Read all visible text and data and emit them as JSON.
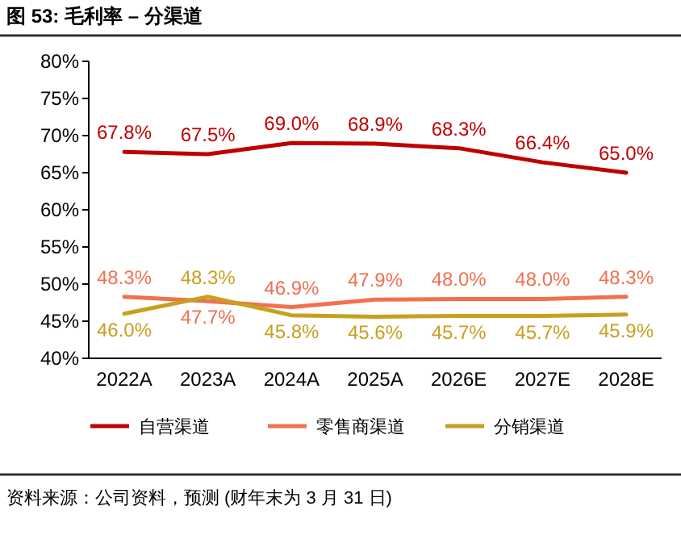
{
  "chart_data": {
    "type": "line",
    "title": "图 53:  毛利率 – 分渠道",
    "categories": [
      "2022A",
      "2023A",
      "2024A",
      "2025A",
      "2026E",
      "2027E",
      "2028E"
    ],
    "series": [
      {
        "name": "自营渠道",
        "color": "#c00000",
        "values": [
          67.8,
          67.5,
          69.0,
          68.9,
          68.3,
          66.4,
          65.0
        ],
        "value_labels": [
          "67.8%",
          "67.5%",
          "69.0%",
          "68.9%",
          "68.3%",
          "66.4%",
          "65.0%"
        ]
      },
      {
        "name": "零售商渠道",
        "color": "#f07050",
        "values": [
          48.3,
          47.7,
          46.9,
          47.9,
          48.0,
          48.0,
          48.3
        ],
        "value_labels": [
          "48.3%",
          "47.7%",
          "46.9%",
          "47.9%",
          "48.0%",
          "48.0%",
          "48.3%"
        ]
      },
      {
        "name": "分销渠道",
        "color": "#c8a020",
        "values": [
          46.0,
          48.3,
          45.8,
          45.6,
          45.7,
          45.7,
          45.9
        ],
        "value_labels": [
          "46.0%",
          "48.3%",
          "45.8%",
          "45.6%",
          "45.7%",
          "45.7%",
          "45.9%"
        ]
      }
    ],
    "ylim": [
      40,
      80
    ],
    "yticks": [
      {
        "value": 40,
        "label": "40%"
      },
      {
        "value": 45,
        "label": "45%"
      },
      {
        "value": 50,
        "label": "50%"
      },
      {
        "value": 55,
        "label": "55%"
      },
      {
        "value": 60,
        "label": "60%"
      },
      {
        "value": 65,
        "label": "65%"
      },
      {
        "value": 70,
        "label": "70%"
      },
      {
        "value": 75,
        "label": "75%"
      },
      {
        "value": 80,
        "label": "80%"
      }
    ],
    "grid": false,
    "legend": "bottom",
    "marker": "none",
    "line_style": "solid",
    "annotations": [
      "资料来源：公司资料，预测 (财年末为 3 月 31 日)"
    ]
  }
}
